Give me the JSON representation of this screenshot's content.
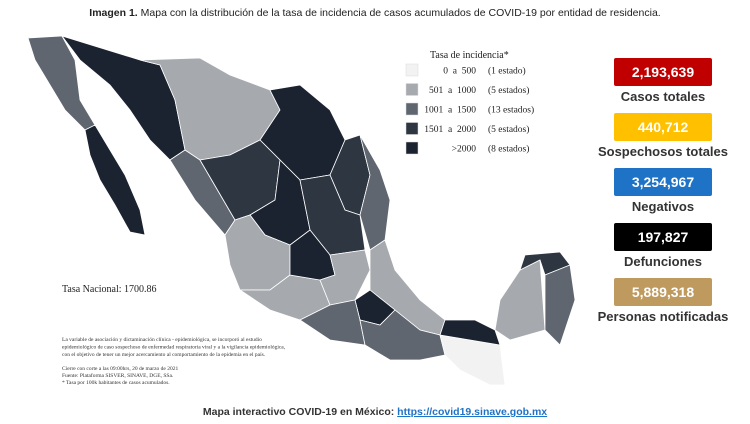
{
  "title": {
    "label": "Imagen 1.",
    "text": "Mapa con la distribución de la tasa de incidencia de casos acumulados de COVID-19 por entidad de residencia."
  },
  "legend": {
    "title": "Tasa de incidencia*",
    "items": [
      {
        "range": "0  a  500",
        "count": "(1 estado)",
        "color": "#f2f2f2"
      },
      {
        "range": "501  a  1000",
        "count": "(5 estados)",
        "color": "#a6a9ae"
      },
      {
        "range": "1001  a  1500",
        "count": "(13 estados)",
        "color": "#5f6670"
      },
      {
        "range": "1501  a  2000",
        "count": "(5 estados)",
        "color": "#2e3642"
      },
      {
        "range": ">2000",
        "count": "(8 estados)",
        "color": "#1b2230"
      }
    ]
  },
  "national_rate": "Tasa Nacional: 1700.86",
  "notes": [
    "La variable de asociación y dictaminación clínica - epidemiológica, se incorporó al estudio",
    "epidemiológico de caso sospechoso de enfermedad respiratoria viral y a la vigilancia epidemiológica,",
    "con el objetivo de tener un mejor acercamiento al comportamiento de la epidemia en el país."
  ],
  "source": [
    "Cierre con corte a las 09:00hrs, 20 de marzo de 2021",
    "Fuente: Plataforma SISVER, SINAVE, DGE, SSa.",
    "* Tasa por 100k habitantes de casos acumulados."
  ],
  "stats": [
    {
      "value": "2,193,639",
      "label": "Casos totales",
      "color": "#c00000"
    },
    {
      "value": "440,712",
      "label": "Sospechosos totales",
      "color": "#ffc000"
    },
    {
      "value": "3,254,967",
      "label": "Negativos",
      "color": "#1f73c6"
    },
    {
      "value": "197,827",
      "label": "Defunciones",
      "color": "#000000"
    },
    {
      "value": "5,889,318",
      "label": "Personas notificadas",
      "color": "#bf9a5e"
    }
  ],
  "footer": {
    "text": "Mapa interactivo COVID-19 en México:",
    "link": "https://covid19.sinave.gob.mx"
  }
}
